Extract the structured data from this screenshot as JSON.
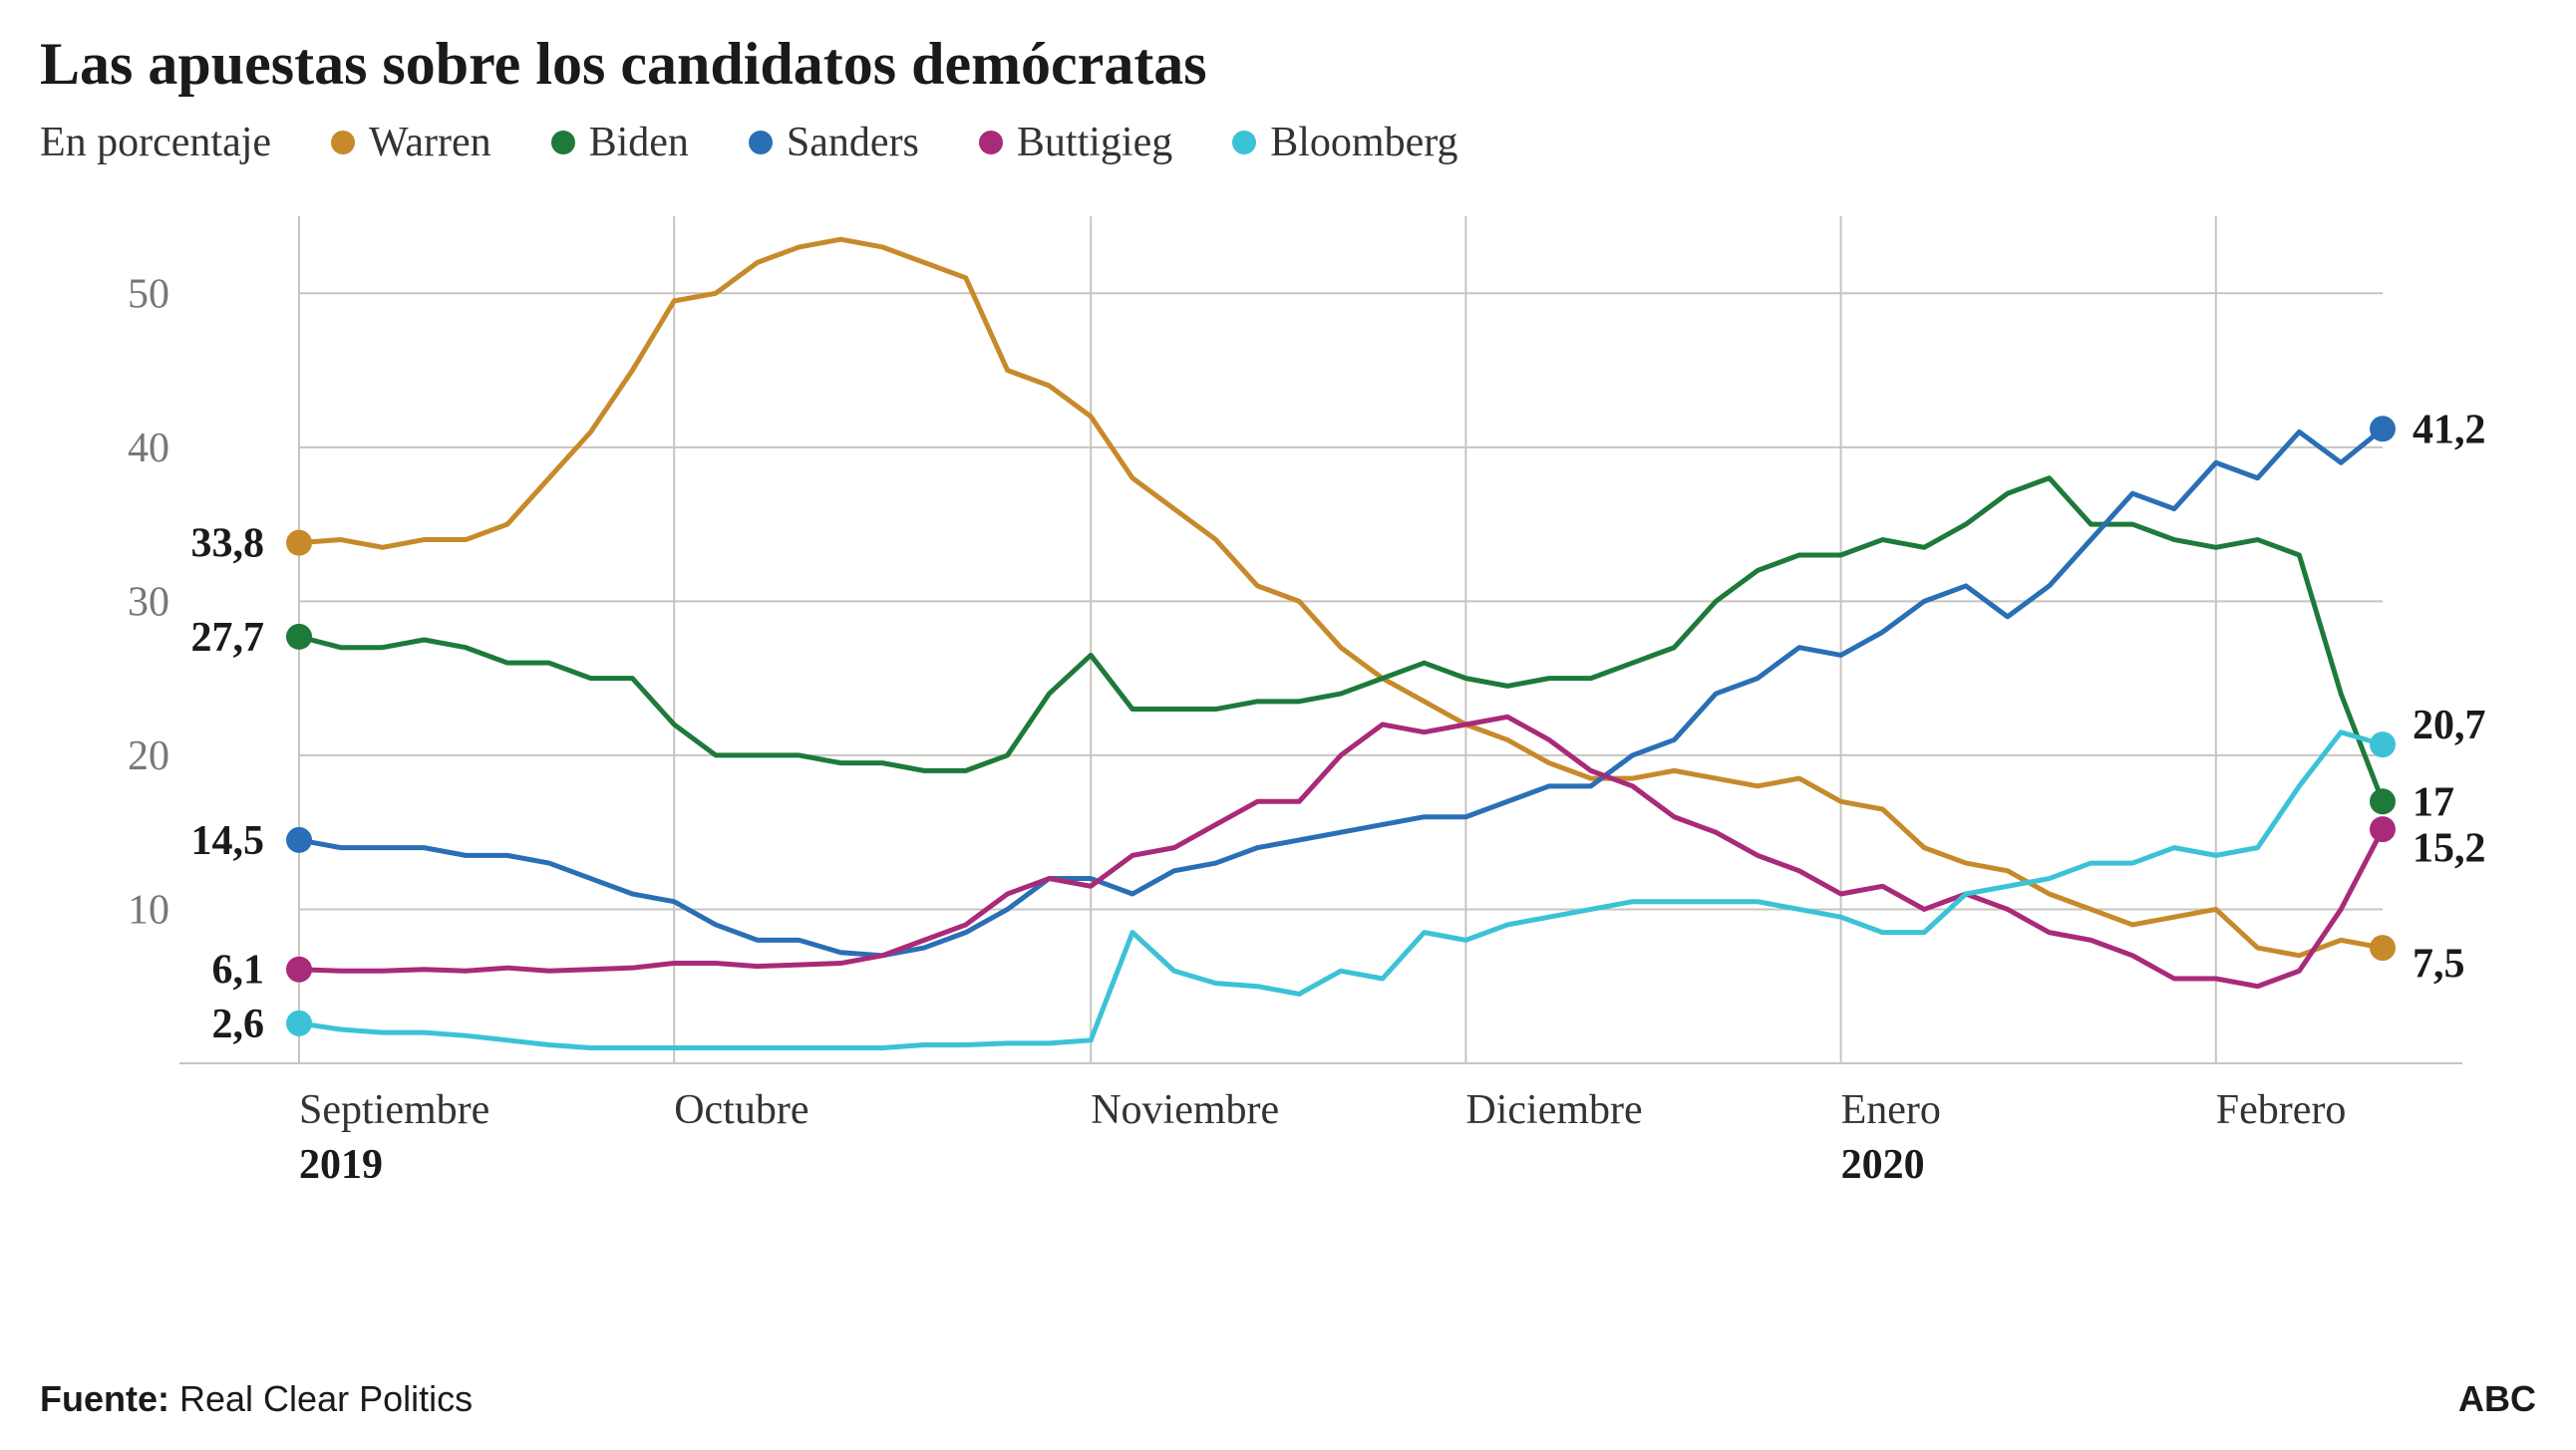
{
  "title": "Las apuestas sobre los candidatos demócratas",
  "subtitle": "En porcentaje",
  "source_label": "Fuente:",
  "source_value": "Real Clear Politics",
  "publisher": "ABC",
  "chart": {
    "type": "line",
    "background_color": "#ffffff",
    "grid_color": "#c8c4bf",
    "axis_color": "#c8c4bf",
    "y_label_color": "#777777",
    "x_label_color": "#333333",
    "line_width": 5,
    "marker_radius": 13,
    "xlim": [
      0,
      100
    ],
    "ylim": [
      0,
      55
    ],
    "y_ticks": [
      10,
      20,
      30,
      40,
      50
    ],
    "x_ticks": [
      {
        "pos": 0,
        "label": "Septiembre",
        "year": "2019"
      },
      {
        "pos": 18,
        "label": "Octubre"
      },
      {
        "pos": 38,
        "label": "Noviembre"
      },
      {
        "pos": 56,
        "label": "Diciembre"
      },
      {
        "pos": 74,
        "label": "Enero",
        "year": "2020"
      },
      {
        "pos": 92,
        "label": "Febrero"
      }
    ],
    "legend": [
      {
        "name": "Warren",
        "color": "#c78a2a"
      },
      {
        "name": "Biden",
        "color": "#1d7a3a"
      },
      {
        "name": "Sanders",
        "color": "#2a6fb5"
      },
      {
        "name": "Buttigieg",
        "color": "#a92a78"
      },
      {
        "name": "Bloomberg",
        "color": "#3cc2d6"
      }
    ],
    "series": [
      {
        "name": "Warren",
        "color": "#c78a2a",
        "start_value": "33,8",
        "end_value": "7,5",
        "end_label_y": 6.5,
        "data": [
          [
            0,
            33.8
          ],
          [
            2,
            34
          ],
          [
            4,
            33.5
          ],
          [
            6,
            34
          ],
          [
            8,
            34
          ],
          [
            10,
            35
          ],
          [
            12,
            38
          ],
          [
            14,
            41
          ],
          [
            16,
            45
          ],
          [
            18,
            49.5
          ],
          [
            20,
            50
          ],
          [
            22,
            52
          ],
          [
            24,
            53
          ],
          [
            26,
            53.5
          ],
          [
            28,
            53
          ],
          [
            30,
            52
          ],
          [
            32,
            51
          ],
          [
            34,
            45
          ],
          [
            36,
            44
          ],
          [
            38,
            42
          ],
          [
            40,
            38
          ],
          [
            42,
            36
          ],
          [
            44,
            34
          ],
          [
            46,
            31
          ],
          [
            48,
            30
          ],
          [
            50,
            27
          ],
          [
            52,
            25
          ],
          [
            54,
            23.5
          ],
          [
            56,
            22
          ],
          [
            58,
            21
          ],
          [
            60,
            19.5
          ],
          [
            62,
            18.5
          ],
          [
            64,
            18.5
          ],
          [
            66,
            19
          ],
          [
            68,
            18.5
          ],
          [
            70,
            18
          ],
          [
            72,
            18.5
          ],
          [
            74,
            17
          ],
          [
            76,
            16.5
          ],
          [
            78,
            14
          ],
          [
            80,
            13
          ],
          [
            82,
            12.5
          ],
          [
            84,
            11
          ],
          [
            86,
            10
          ],
          [
            88,
            9
          ],
          [
            90,
            9.5
          ],
          [
            92,
            10
          ],
          [
            94,
            7.5
          ],
          [
            96,
            7
          ],
          [
            98,
            8
          ],
          [
            100,
            7.5
          ]
        ]
      },
      {
        "name": "Biden",
        "color": "#1d7a3a",
        "start_value": "27,7",
        "end_value": "17",
        "end_label_y": 17,
        "data": [
          [
            0,
            27.7
          ],
          [
            2,
            27
          ],
          [
            4,
            27
          ],
          [
            6,
            27.5
          ],
          [
            8,
            27
          ],
          [
            10,
            26
          ],
          [
            12,
            26
          ],
          [
            14,
            25
          ],
          [
            16,
            25
          ],
          [
            18,
            22
          ],
          [
            20,
            20
          ],
          [
            22,
            20
          ],
          [
            24,
            20
          ],
          [
            26,
            19.5
          ],
          [
            28,
            19.5
          ],
          [
            30,
            19
          ],
          [
            32,
            19
          ],
          [
            34,
            20
          ],
          [
            36,
            24
          ],
          [
            38,
            26.5
          ],
          [
            40,
            23
          ],
          [
            42,
            23
          ],
          [
            44,
            23
          ],
          [
            46,
            23.5
          ],
          [
            48,
            23.5
          ],
          [
            50,
            24
          ],
          [
            52,
            25
          ],
          [
            54,
            26
          ],
          [
            56,
            25
          ],
          [
            58,
            24.5
          ],
          [
            60,
            25
          ],
          [
            62,
            25
          ],
          [
            64,
            26
          ],
          [
            66,
            27
          ],
          [
            68,
            30
          ],
          [
            70,
            32
          ],
          [
            72,
            33
          ],
          [
            74,
            33
          ],
          [
            76,
            34
          ],
          [
            78,
            33.5
          ],
          [
            80,
            35
          ],
          [
            82,
            37
          ],
          [
            84,
            38
          ],
          [
            86,
            35
          ],
          [
            88,
            35
          ],
          [
            90,
            34
          ],
          [
            92,
            33.5
          ],
          [
            94,
            34
          ],
          [
            96,
            33
          ],
          [
            98,
            24
          ],
          [
            100,
            17
          ]
        ]
      },
      {
        "name": "Sanders",
        "color": "#2a6fb5",
        "start_value": "14,5",
        "end_value": "41,2",
        "end_label_y": 41.2,
        "data": [
          [
            0,
            14.5
          ],
          [
            2,
            14
          ],
          [
            4,
            14
          ],
          [
            6,
            14
          ],
          [
            8,
            13.5
          ],
          [
            10,
            13.5
          ],
          [
            12,
            13
          ],
          [
            14,
            12
          ],
          [
            16,
            11
          ],
          [
            18,
            10.5
          ],
          [
            20,
            9
          ],
          [
            22,
            8
          ],
          [
            24,
            8
          ],
          [
            26,
            7.2
          ],
          [
            28,
            7
          ],
          [
            30,
            7.5
          ],
          [
            32,
            8.5
          ],
          [
            34,
            10
          ],
          [
            36,
            12
          ],
          [
            38,
            12
          ],
          [
            40,
            11
          ],
          [
            42,
            12.5
          ],
          [
            44,
            13
          ],
          [
            46,
            14
          ],
          [
            48,
            14.5
          ],
          [
            50,
            15
          ],
          [
            52,
            15.5
          ],
          [
            54,
            16
          ],
          [
            56,
            16
          ],
          [
            58,
            17
          ],
          [
            60,
            18
          ],
          [
            62,
            18
          ],
          [
            64,
            20
          ],
          [
            66,
            21
          ],
          [
            68,
            24
          ],
          [
            70,
            25
          ],
          [
            72,
            27
          ],
          [
            74,
            26.5
          ],
          [
            76,
            28
          ],
          [
            78,
            30
          ],
          [
            80,
            31
          ],
          [
            82,
            29
          ],
          [
            84,
            31
          ],
          [
            86,
            34
          ],
          [
            88,
            37
          ],
          [
            90,
            36
          ],
          [
            92,
            39
          ],
          [
            94,
            38
          ],
          [
            96,
            41
          ],
          [
            98,
            39
          ],
          [
            100,
            41.2
          ]
        ]
      },
      {
        "name": "Buttigieg",
        "color": "#a92a78",
        "start_value": "6,1",
        "end_value": "15,2",
        "end_label_y": 14,
        "data": [
          [
            0,
            6.1
          ],
          [
            2,
            6
          ],
          [
            4,
            6
          ],
          [
            6,
            6.1
          ],
          [
            8,
            6
          ],
          [
            10,
            6.2
          ],
          [
            12,
            6
          ],
          [
            14,
            6.1
          ],
          [
            16,
            6.2
          ],
          [
            18,
            6.5
          ],
          [
            20,
            6.5
          ],
          [
            22,
            6.3
          ],
          [
            24,
            6.4
          ],
          [
            26,
            6.5
          ],
          [
            28,
            7
          ],
          [
            30,
            8
          ],
          [
            32,
            9
          ],
          [
            34,
            11
          ],
          [
            36,
            12
          ],
          [
            38,
            11.5
          ],
          [
            40,
            13.5
          ],
          [
            42,
            14
          ],
          [
            44,
            15.5
          ],
          [
            46,
            17
          ],
          [
            48,
            17
          ],
          [
            50,
            20
          ],
          [
            52,
            22
          ],
          [
            54,
            21.5
          ],
          [
            56,
            22
          ],
          [
            58,
            22.5
          ],
          [
            60,
            21
          ],
          [
            62,
            19
          ],
          [
            64,
            18
          ],
          [
            66,
            16
          ],
          [
            68,
            15
          ],
          [
            70,
            13.5
          ],
          [
            72,
            12.5
          ],
          [
            74,
            11
          ],
          [
            76,
            11.5
          ],
          [
            78,
            10
          ],
          [
            80,
            11
          ],
          [
            82,
            10
          ],
          [
            84,
            8.5
          ],
          [
            86,
            8
          ],
          [
            88,
            7
          ],
          [
            90,
            5.5
          ],
          [
            92,
            5.5
          ],
          [
            94,
            5
          ],
          [
            96,
            6
          ],
          [
            98,
            10
          ],
          [
            100,
            15.2
          ]
        ]
      },
      {
        "name": "Bloomberg",
        "color": "#3cc2d6",
        "start_value": "2,6",
        "end_value": "20,7",
        "end_label_y": 22,
        "data": [
          [
            0,
            2.6
          ],
          [
            2,
            2.2
          ],
          [
            4,
            2
          ],
          [
            6,
            2
          ],
          [
            8,
            1.8
          ],
          [
            10,
            1.5
          ],
          [
            12,
            1.2
          ],
          [
            14,
            1
          ],
          [
            16,
            1
          ],
          [
            18,
            1
          ],
          [
            20,
            1
          ],
          [
            22,
            1
          ],
          [
            24,
            1
          ],
          [
            26,
            1
          ],
          [
            28,
            1
          ],
          [
            30,
            1.2
          ],
          [
            32,
            1.2
          ],
          [
            34,
            1.3
          ],
          [
            36,
            1.3
          ],
          [
            38,
            1.5
          ],
          [
            40,
            8.5
          ],
          [
            42,
            6
          ],
          [
            44,
            5.2
          ],
          [
            46,
            5
          ],
          [
            48,
            4.5
          ],
          [
            50,
            6
          ],
          [
            52,
            5.5
          ],
          [
            54,
            8.5
          ],
          [
            56,
            8
          ],
          [
            58,
            9
          ],
          [
            60,
            9.5
          ],
          [
            62,
            10
          ],
          [
            64,
            10.5
          ],
          [
            66,
            10.5
          ],
          [
            68,
            10.5
          ],
          [
            70,
            10.5
          ],
          [
            72,
            10
          ],
          [
            74,
            9.5
          ],
          [
            76,
            8.5
          ],
          [
            78,
            8.5
          ],
          [
            80,
            11
          ],
          [
            82,
            11.5
          ],
          [
            84,
            12
          ],
          [
            86,
            13
          ],
          [
            88,
            13
          ],
          [
            90,
            14
          ],
          [
            92,
            13.5
          ],
          [
            94,
            14
          ],
          [
            96,
            18
          ],
          [
            98,
            21.5
          ],
          [
            100,
            20.7
          ]
        ]
      }
    ]
  }
}
